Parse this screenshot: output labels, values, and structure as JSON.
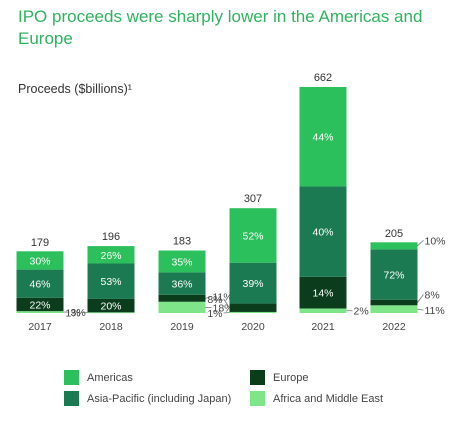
{
  "title": "IPO proceeds were sharply lower in the Americas and Europe",
  "chart_data": {
    "type": "bar",
    "stacked": true,
    "title": "IPO proceeds were sharply lower in the Americas and Europe",
    "ylabel": "Proceeds ($billions)¹",
    "categories": [
      "2017",
      "2018",
      "2019",
      "2020",
      "2021",
      "2022"
    ],
    "totals": [
      179,
      196,
      183,
      307,
      662,
      205
    ],
    "ylim": [
      0,
      662
    ],
    "series": [
      {
        "name": "Africa and Middle East",
        "color": "#7ee589",
        "percent": [
          3,
          1,
          18,
          1,
          2,
          11
        ],
        "labels": [
          "3%",
          "1%",
          "18%",
          "1%",
          "2%",
          "11%"
        ]
      },
      {
        "name": "Europe",
        "color": "#0b3d1c",
        "percent": [
          22,
          20,
          11,
          8,
          14,
          8
        ],
        "labels": [
          "22%",
          "20%",
          "11%",
          "8%",
          "14%",
          "8%"
        ]
      },
      {
        "name": "Asia-Pacific (including Japan)",
        "color": "#1c7a52",
        "percent": [
          46,
          53,
          36,
          39,
          40,
          72
        ],
        "labels": [
          "46%",
          "53%",
          "36%",
          "39%",
          "40%",
          "72%"
        ]
      },
      {
        "name": "Americas",
        "color": "#2bc05c",
        "percent": [
          30,
          26,
          35,
          52,
          44,
          10
        ],
        "labels": [
          "30%",
          "26%",
          "35%",
          "52%",
          "44%",
          "10%"
        ]
      }
    ],
    "legend": "bottom",
    "grid": false
  },
  "legend": [
    {
      "label": "Americas",
      "color": "#2bc05c"
    },
    {
      "label": "Europe",
      "color": "#0b3d1c"
    },
    {
      "label": "Asia-Pacific (including Japan)",
      "color": "#1c7a52"
    },
    {
      "label": "Africa and Middle East",
      "color": "#7ee589"
    }
  ]
}
